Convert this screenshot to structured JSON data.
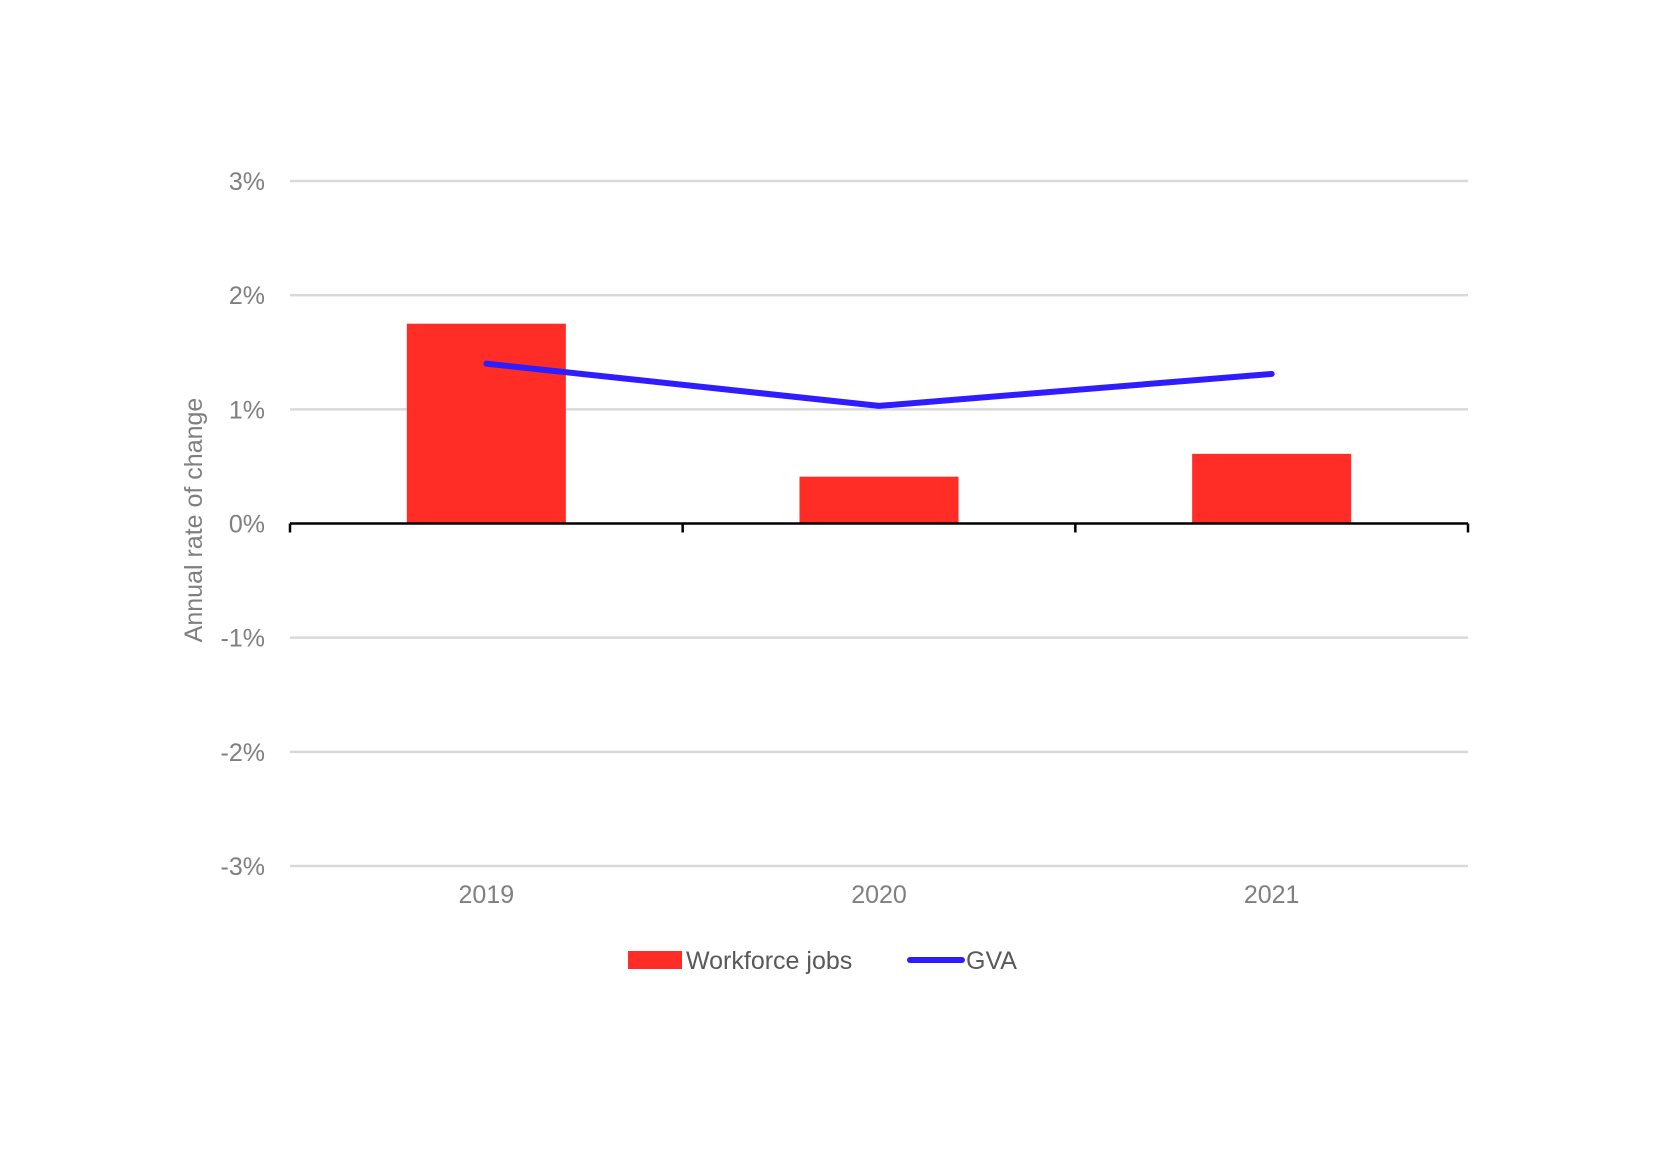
{
  "chart_data": {
    "type": "bar",
    "title": "",
    "xlabel": "",
    "ylabel": "Annual rate of change",
    "categories": [
      "2019",
      "2020",
      "2021"
    ],
    "ylim": [
      -3,
      3
    ],
    "y_ticks": [
      3,
      2,
      1,
      0,
      -1,
      -2,
      -3
    ],
    "y_tick_labels": [
      "3%",
      "2%",
      "1%",
      "0%",
      "-1%",
      "-2%",
      "-3%"
    ],
    "grid": true,
    "legend_position": "bottom",
    "series": [
      {
        "name": "Workforce jobs",
        "type": "bar",
        "color": "#ff2d26",
        "values": [
          1.75,
          0.41,
          0.61
        ]
      },
      {
        "name": "GVA",
        "type": "line",
        "color": "#2f1cff",
        "values": [
          1.4,
          1.03,
          1.31
        ]
      }
    ]
  }
}
